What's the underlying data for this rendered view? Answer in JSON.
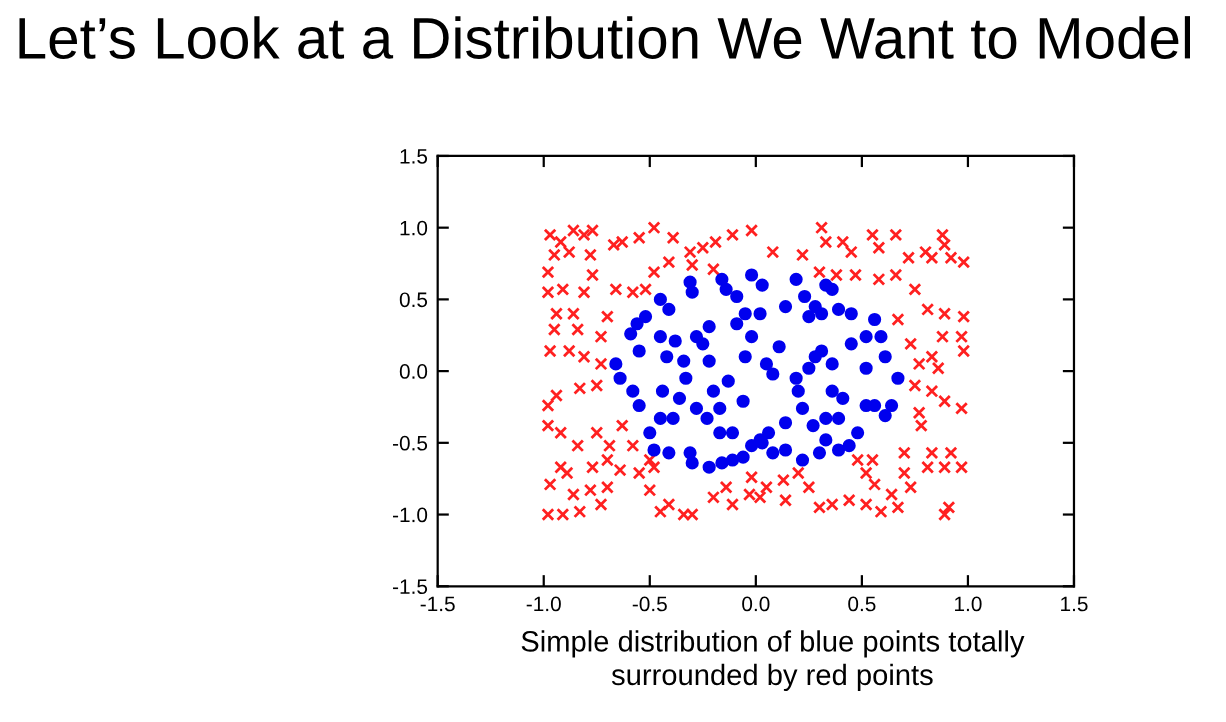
{
  "chart_data": {
    "type": "scatter",
    "title": "Let’s Look at a Distribution We Want to Model",
    "annotations": [
      "Simple distribution of blue points totally\nsurrounded by red points"
    ],
    "xlim": [
      -1.5,
      1.5
    ],
    "ylim": [
      -1.5,
      1.5
    ],
    "xticks": [
      {
        "value": -1.5,
        "label": "-1.5"
      },
      {
        "value": -1.0,
        "label": "-1.0"
      },
      {
        "value": -0.5,
        "label": "-0.5"
      },
      {
        "value": 0,
        "label": "0.0"
      },
      {
        "value": 0.5,
        "label": "0.5"
      },
      {
        "value": 1.0,
        "label": "1.0"
      },
      {
        "value": 1.5,
        "label": "1.5"
      }
    ],
    "yticks": [
      {
        "value": -1.5,
        "label": "-1.5"
      },
      {
        "value": -1.0,
        "label": "-1.0"
      },
      {
        "value": -0.5,
        "label": "-0.5"
      },
      {
        "value": 0,
        "label": "0.0"
      },
      {
        "value": 0.5,
        "label": "0.5"
      },
      {
        "value": 1.0,
        "label": "1.0"
      },
      {
        "value": 1.5,
        "label": "1.5"
      }
    ],
    "grid": false,
    "series": [
      {
        "color": "#ff2020",
        "marker": "cross",
        "x": [
          -0.97,
          -0.92,
          -0.86,
          -0.81,
          -0.77,
          -0.95,
          -0.88,
          -0.78,
          -0.67,
          -0.63,
          -0.55,
          -0.48,
          -0.39,
          -0.31,
          -0.25,
          -0.19,
          -0.11,
          -0.2,
          -0.41,
          -0.3,
          -0.02,
          0.08,
          0.22,
          0.31,
          0.33,
          0.41,
          0.45,
          0.55,
          0.58,
          0.66,
          0.72,
          0.8,
          0.88,
          0.89,
          0.92,
          0.98,
          0.83,
          0.3,
          0.38,
          0.47,
          0.58,
          0.66,
          0.75,
          0.81,
          0.89,
          0.98,
          0.88,
          0.97,
          0.98,
          0.83,
          0.86,
          0.77,
          0.73,
          0.67,
          0.75,
          0.83,
          0.89,
          0.97,
          0.77,
          0.78,
          0.83,
          0.92,
          0.97,
          0.89,
          0.81,
          0.7,
          0.7,
          0.73,
          0.67,
          0.91,
          0.89,
          0.64,
          0.56,
          0.52,
          0.55,
          0.48,
          0.59,
          0.52,
          0.44,
          0.36,
          0.3,
          0.25,
          0.14,
          0.13,
          0.05,
          -0.02,
          -0.03,
          -0.11,
          -0.14,
          -0.2,
          -0.3,
          -0.34,
          -0.41,
          -0.45,
          -0.5,
          -0.55,
          -0.48,
          -0.64,
          -0.7,
          -0.73,
          -0.78,
          -0.86,
          -0.92,
          -0.89,
          -0.97,
          -0.98,
          -0.91,
          -0.83,
          -0.77,
          -0.7,
          -0.84,
          -0.92,
          -0.98,
          -0.98,
          -0.94,
          -0.83,
          -0.75,
          -0.73,
          -0.81,
          -0.88,
          -0.97,
          -0.95,
          -0.84,
          -0.73,
          -0.7,
          -0.94,
          -0.86,
          -0.98,
          -0.91,
          -0.81,
          -0.66,
          -0.58,
          -0.52,
          -0.48,
          -0.98,
          -0.77,
          -0.69,
          -0.63,
          -0.75,
          0.2,
          -0.58,
          -0.5,
          0.02
        ],
        "values": [
          0.95,
          0.9,
          0.98,
          0.95,
          0.98,
          0.81,
          0.83,
          0.81,
          0.88,
          0.9,
          0.93,
          1.0,
          0.93,
          0.83,
          0.86,
          0.9,
          0.95,
          0.71,
          0.76,
          0.74,
          0.98,
          0.83,
          0.81,
          1.0,
          0.9,
          0.9,
          0.83,
          0.95,
          0.86,
          0.95,
          0.79,
          0.83,
          0.95,
          0.88,
          0.79,
          0.76,
          0.79,
          0.69,
          0.67,
          0.67,
          0.64,
          0.67,
          0.57,
          0.43,
          0.4,
          0.38,
          0.24,
          0.24,
          0.14,
          0.1,
          0.02,
          0.05,
          0.19,
          0.36,
          -0.1,
          -0.14,
          -0.21,
          -0.26,
          -0.29,
          -0.38,
          -0.57,
          -0.57,
          -0.67,
          -0.67,
          -0.67,
          -0.57,
          -0.71,
          -0.81,
          -0.95,
          -0.95,
          -1.0,
          -0.86,
          -0.79,
          -0.71,
          -0.62,
          -0.62,
          -0.98,
          -0.93,
          -0.9,
          -0.93,
          -0.95,
          -0.81,
          -0.9,
          -0.76,
          -0.81,
          -0.74,
          -0.86,
          -0.93,
          -0.81,
          -0.88,
          -1.0,
          -1.0,
          -0.93,
          -0.98,
          -0.83,
          -0.71,
          -0.67,
          -0.69,
          -0.81,
          -0.93,
          -0.83,
          -0.86,
          -0.67,
          -0.71,
          -0.79,
          -1.0,
          -1.0,
          -0.98,
          -0.67,
          -0.62,
          -0.52,
          -0.43,
          -0.38,
          -0.24,
          -0.17,
          -0.12,
          -0.1,
          0.05,
          0.1,
          0.14,
          0.14,
          0.29,
          0.29,
          0.24,
          0.38,
          0.4,
          0.4,
          0.55,
          0.57,
          0.55,
          0.57,
          0.55,
          0.57,
          0.69,
          0.69,
          0.67,
          -0.52,
          -0.38,
          -0.43,
          -0.71,
          -0.52,
          -0.62,
          -0.88
        ]
      },
      {
        "color": "#0000ee",
        "marker": "circle",
        "x": [
          -0.45,
          -0.41,
          -0.31,
          -0.3,
          -0.16,
          -0.14,
          -0.09,
          -0.02,
          0.03,
          -0.05,
          0.02,
          0.19,
          0.23,
          0.28,
          0.33,
          0.36,
          0.31,
          0.39,
          0.45,
          0.52,
          0.56,
          0.59,
          0.61,
          0.67,
          0.64,
          0.61,
          0.52,
          0.48,
          0.44,
          0.39,
          0.33,
          0.3,
          0.22,
          0.14,
          0.08,
          0.03,
          -0.02,
          -0.06,
          -0.11,
          -0.16,
          -0.22,
          -0.3,
          -0.31,
          -0.41,
          -0.48,
          -0.5,
          -0.55,
          -0.58,
          -0.66,
          -0.64,
          -0.59,
          -0.55,
          -0.56,
          -0.52,
          -0.45,
          -0.42,
          -0.38,
          -0.34,
          -0.33,
          -0.28,
          -0.25,
          -0.22,
          -0.22,
          -0.2,
          -0.17,
          -0.13,
          -0.06,
          -0.05,
          -0.02,
          0.05,
          0.08,
          0.11,
          0.19,
          0.2,
          0.22,
          0.25,
          0.28,
          0.31,
          0.36,
          0.36,
          0.41,
          0.45,
          0.52,
          0.56,
          0.39,
          0.33,
          0.27,
          0.14,
          0.06,
          0.02,
          -0.11,
          -0.17,
          -0.23,
          -0.28,
          -0.36,
          -0.44,
          -0.45,
          -0.39,
          -0.09,
          0.14,
          0.25
        ],
        "values": [
          0.5,
          0.43,
          0.62,
          0.55,
          0.64,
          0.57,
          0.52,
          0.67,
          0.6,
          0.4,
          0.4,
          0.64,
          0.52,
          0.45,
          0.6,
          0.57,
          0.4,
          0.43,
          0.4,
          0.24,
          0.36,
          0.24,
          0.1,
          -0.05,
          -0.24,
          -0.31,
          -0.24,
          -0.43,
          -0.52,
          -0.55,
          -0.48,
          -0.57,
          -0.62,
          -0.55,
          -0.57,
          -0.5,
          -0.52,
          -0.6,
          -0.62,
          -0.64,
          -0.67,
          -0.64,
          -0.57,
          -0.57,
          -0.55,
          -0.43,
          -0.24,
          -0.14,
          0.05,
          -0.05,
          0.26,
          0.14,
          0.33,
          0.38,
          0.24,
          0.1,
          0.21,
          0.07,
          -0.05,
          0.24,
          0.19,
          0.31,
          0.07,
          -0.14,
          -0.26,
          -0.07,
          -0.21,
          0.1,
          0.24,
          0.05,
          -0.02,
          0.17,
          -0.05,
          -0.14,
          -0.26,
          0.02,
          0.1,
          0.14,
          0.05,
          -0.14,
          -0.19,
          0.19,
          0.02,
          -0.24,
          -0.33,
          -0.33,
          -0.38,
          -0.36,
          -0.43,
          -0.48,
          -0.43,
          -0.43,
          -0.33,
          -0.26,
          -0.19,
          -0.14,
          -0.33,
          -0.33,
          0.33,
          0.45,
          0.38
        ]
      }
    ]
  }
}
